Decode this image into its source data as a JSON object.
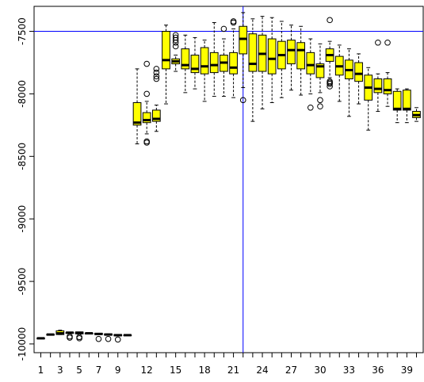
{
  "chart_data": {
    "type": "boxplot",
    "title": "",
    "xlabel": "",
    "ylabel": "",
    "ylim": [
      -10070,
      -7300
    ],
    "xlim": [
      0.3,
      40.7
    ],
    "categories": [
      1,
      2,
      3,
      4,
      5,
      6,
      7,
      8,
      9,
      10,
      11,
      12,
      13,
      14,
      15,
      16,
      17,
      18,
      19,
      20,
      21,
      22,
      23,
      24,
      25,
      26,
      27,
      28,
      29,
      30,
      31,
      32,
      33,
      34,
      35,
      36,
      37,
      38,
      39,
      40
    ],
    "x_tick_labels": [
      "1",
      "3",
      "5",
      "7",
      "9",
      "12",
      "15",
      "18",
      "21",
      "24",
      "27",
      "30",
      "33",
      "36",
      "39"
    ],
    "x_tick_positions": [
      1,
      3,
      5,
      7,
      9,
      12,
      15,
      18,
      21,
      24,
      27,
      30,
      33,
      36,
      39
    ],
    "y_tick_labels": [
      "-10000",
      "-9500",
      "-9000",
      "-8500",
      "-8000",
      "-7500"
    ],
    "y_tick_values": [
      -10000,
      -9500,
      -9000,
      -8500,
      -8000,
      -7500
    ],
    "reference_lines": {
      "horizontal_y": -7500,
      "vertical_x": 22,
      "color": "#0000ff"
    },
    "box_fill": "#ffff00",
    "boxes": [
      {
        "x": 1,
        "q1": -9955,
        "median": -9955,
        "q3": -9955,
        "lo": -9955,
        "hi": -9955,
        "out": []
      },
      {
        "x": 2,
        "q1": -9925,
        "median": -9925,
        "q3": -9925,
        "lo": -9925,
        "hi": -9925,
        "out": []
      },
      {
        "x": 3,
        "q1": -9925,
        "median": -9915,
        "q3": -9895,
        "lo": -9925,
        "hi": -9890,
        "out": []
      },
      {
        "x": 4,
        "q1": -9915,
        "median": -9910,
        "q3": -9910,
        "lo": -9915,
        "hi": -9910,
        "out": [
          -9950,
          -9940
        ]
      },
      {
        "x": 5,
        "q1": -9920,
        "median": -9910,
        "q3": -9905,
        "lo": -9920,
        "hi": -9905,
        "out": [
          -9955,
          -9945
        ]
      },
      {
        "x": 6,
        "q1": -9920,
        "median": -9915,
        "q3": -9915,
        "lo": -9920,
        "hi": -9915,
        "out": []
      },
      {
        "x": 7,
        "q1": -9925,
        "median": -9920,
        "q3": -9915,
        "lo": -9925,
        "hi": -9915,
        "out": [
          -9960
        ]
      },
      {
        "x": 8,
        "q1": -9930,
        "median": -9925,
        "q3": -9920,
        "lo": -9930,
        "hi": -9920,
        "out": [
          -9960
        ]
      },
      {
        "x": 9,
        "q1": -9935,
        "median": -9930,
        "q3": -9925,
        "lo": -9935,
        "hi": -9925,
        "out": [
          -9965
        ]
      },
      {
        "x": 10,
        "q1": -9930,
        "median": -9930,
        "q3": -9930,
        "lo": -9930,
        "hi": -9930,
        "out": []
      },
      {
        "x": 11,
        "q1": -8250,
        "median": -8230,
        "q3": -8070,
        "lo": -8400,
        "hi": -7800,
        "out": []
      },
      {
        "x": 12,
        "q1": -8230,
        "median": -8210,
        "q3": -8150,
        "lo": -8320,
        "hi": -8060,
        "out": [
          -8380,
          -8390,
          -8000,
          -7760
        ]
      },
      {
        "x": 13,
        "q1": -8220,
        "median": -8200,
        "q3": -8130,
        "lo": -8300,
        "hi": -8090,
        "out": [
          -7800,
          -7830,
          -7860,
          -7880
        ]
      },
      {
        "x": 14,
        "q1": -7800,
        "median": -7730,
        "q3": -7500,
        "lo": -8080,
        "hi": -7450,
        "out": []
      },
      {
        "x": 15,
        "q1": -7760,
        "median": -7740,
        "q3": -7720,
        "lo": -7820,
        "hi": -7690,
        "out": [
          -7530,
          -7550,
          -7570,
          -7590,
          -7620
        ]
      },
      {
        "x": 16,
        "q1": -7800,
        "median": -7770,
        "q3": -7640,
        "lo": -7990,
        "hi": -7530,
        "out": []
      },
      {
        "x": 17,
        "q1": -7830,
        "median": -7800,
        "q3": -7690,
        "lo": -7960,
        "hi": -7550,
        "out": []
      },
      {
        "x": 18,
        "q1": -7840,
        "median": -7780,
        "q3": -7630,
        "lo": -8060,
        "hi": -7570,
        "out": []
      },
      {
        "x": 19,
        "q1": -7830,
        "median": -7770,
        "q3": -7670,
        "lo": -8020,
        "hi": -7430,
        "out": []
      },
      {
        "x": 20,
        "q1": -7820,
        "median": -7750,
        "q3": -7690,
        "lo": -8020,
        "hi": -7560,
        "out": [
          -7480
        ]
      },
      {
        "x": 21,
        "q1": -7840,
        "median": -7790,
        "q3": -7670,
        "lo": -8030,
        "hi": -7480,
        "out": [
          -7420,
          -7430
        ]
      },
      {
        "x": 22,
        "q1": -7680,
        "median": -7560,
        "q3": -7460,
        "lo": -7950,
        "hi": -7350,
        "out": [
          -8050
        ]
      },
      {
        "x": 23,
        "q1": -7820,
        "median": -7760,
        "q3": -7520,
        "lo": -8220,
        "hi": -7400,
        "out": []
      },
      {
        "x": 24,
        "q1": -7820,
        "median": -7680,
        "q3": -7530,
        "lo": -8120,
        "hi": -7380,
        "out": []
      },
      {
        "x": 25,
        "q1": -7840,
        "median": -7720,
        "q3": -7560,
        "lo": -8070,
        "hi": -7390,
        "out": []
      },
      {
        "x": 26,
        "q1": -7800,
        "median": -7690,
        "q3": -7580,
        "lo": -8030,
        "hi": -7420,
        "out": []
      },
      {
        "x": 27,
        "q1": -7760,
        "median": -7650,
        "q3": -7570,
        "lo": -7970,
        "hi": -7450,
        "out": []
      },
      {
        "x": 28,
        "q1": -7800,
        "median": -7650,
        "q3": -7590,
        "lo": -8010,
        "hi": -7460,
        "out": []
      },
      {
        "x": 29,
        "q1": -7840,
        "median": -7770,
        "q3": -7670,
        "lo": -8000,
        "hi": -7560,
        "out": [
          -8110
        ]
      },
      {
        "x": 30,
        "q1": -7870,
        "median": -7780,
        "q3": -7760,
        "lo": -7990,
        "hi": -7600,
        "out": [
          -8050,
          -8100
        ]
      },
      {
        "x": 31,
        "q1": -7740,
        "median": -7690,
        "q3": -7640,
        "lo": -7870,
        "hi": -7580,
        "out": [
          -7410,
          -7900,
          -7910,
          -7920,
          -7940
        ]
      },
      {
        "x": 32,
        "q1": -7850,
        "median": -7780,
        "q3": -7700,
        "lo": -8060,
        "hi": -7610,
        "out": []
      },
      {
        "x": 33,
        "q1": -7880,
        "median": -7810,
        "q3": -7730,
        "lo": -8180,
        "hi": -7640,
        "out": []
      },
      {
        "x": 34,
        "q1": -7900,
        "median": -7840,
        "q3": -7750,
        "lo": -8080,
        "hi": -7680,
        "out": []
      },
      {
        "x": 35,
        "q1": -8050,
        "median": -7950,
        "q3": -7850,
        "lo": -8290,
        "hi": -7790,
        "out": []
      },
      {
        "x": 36,
        "q1": -7990,
        "median": -7960,
        "q3": -7880,
        "lo": -8140,
        "hi": -7840,
        "out": [
          -7590
        ]
      },
      {
        "x": 37,
        "q1": -8000,
        "median": -7970,
        "q3": -7880,
        "lo": -8100,
        "hi": -7830,
        "out": [
          -7590
        ]
      },
      {
        "x": 38,
        "q1": -8130,
        "median": -8120,
        "q3": -7980,
        "lo": -8230,
        "hi": -7960,
        "out": []
      },
      {
        "x": 39,
        "q1": -8130,
        "median": -8120,
        "q3": -7970,
        "lo": -8230,
        "hi": -7960,
        "out": []
      },
      {
        "x": 40,
        "q1": -8190,
        "median": -8170,
        "q3": -8140,
        "lo": -8220,
        "hi": -8110,
        "out": []
      }
    ]
  }
}
